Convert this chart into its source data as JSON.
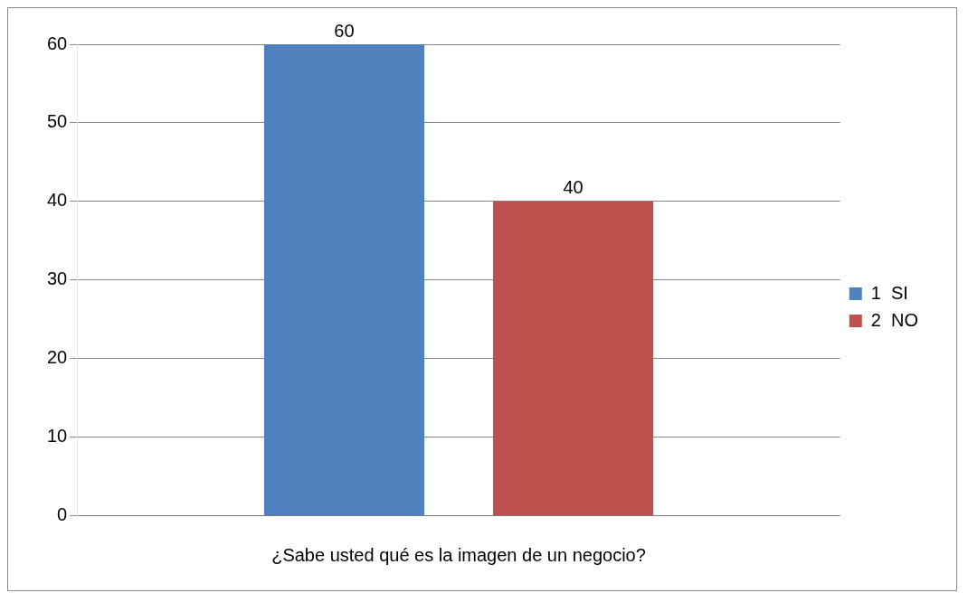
{
  "chart_data": {
    "type": "bar",
    "xlabel": "¿Sabe usted qué es la imagen de un negocio?",
    "categories": [
      null
    ],
    "series": [
      {
        "name": "1  SI",
        "color": "#4f81bd",
        "values": [
          60
        ]
      },
      {
        "name": "2  NO",
        "color": "#c0504d",
        "values": [
          40
        ]
      }
    ],
    "ylim": [
      0,
      60
    ],
    "yticks": [
      0,
      10,
      20,
      30,
      40,
      50,
      60
    ],
    "grid": "y",
    "legend": "right",
    "data_labels": true
  }
}
